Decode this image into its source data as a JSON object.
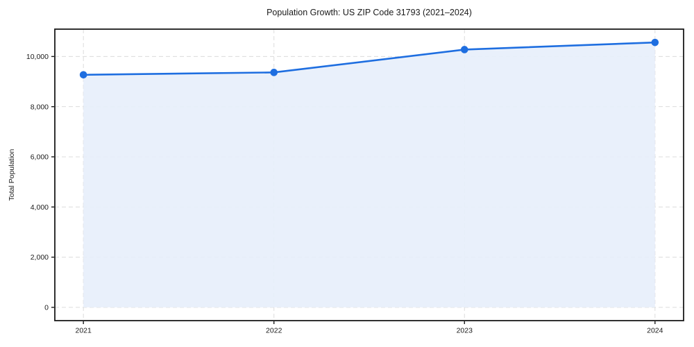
{
  "chart_data": {
    "type": "line",
    "title": "Population Growth: US ZIP Code 31793 (2021–2024)",
    "xlabel": "",
    "ylabel": "Total Population",
    "x": [
      2021,
      2022,
      2023,
      2024
    ],
    "series": [
      {
        "name": "Total Population",
        "values": [
          9270,
          9365,
          10275,
          10560
        ]
      }
    ],
    "xticks": {
      "values": [
        2021,
        2022,
        2023,
        2024
      ],
      "labels": [
        "2021",
        "2022",
        "2023",
        "2024"
      ]
    },
    "yticks": {
      "values": [
        0,
        2000,
        4000,
        6000,
        8000,
        10000
      ],
      "labels": [
        "0",
        "2,000",
        "4,000",
        "6,000",
        "8,000",
        "10,000"
      ]
    },
    "xlim": [
      2020.85,
      2024.15
    ],
    "ylim": [
      -530,
      11090
    ],
    "grid": true,
    "grid_style": "dashed",
    "legend": "none",
    "area_fill": true,
    "fill_baseline": 0,
    "marker": "circle",
    "colors": {
      "line": "#1e6ee0",
      "fill": "#e7eefb",
      "grid": "#dcdcdc",
      "axis": "#1a1a1a",
      "text": "#1a1a1a",
      "background": "#ffffff"
    }
  }
}
